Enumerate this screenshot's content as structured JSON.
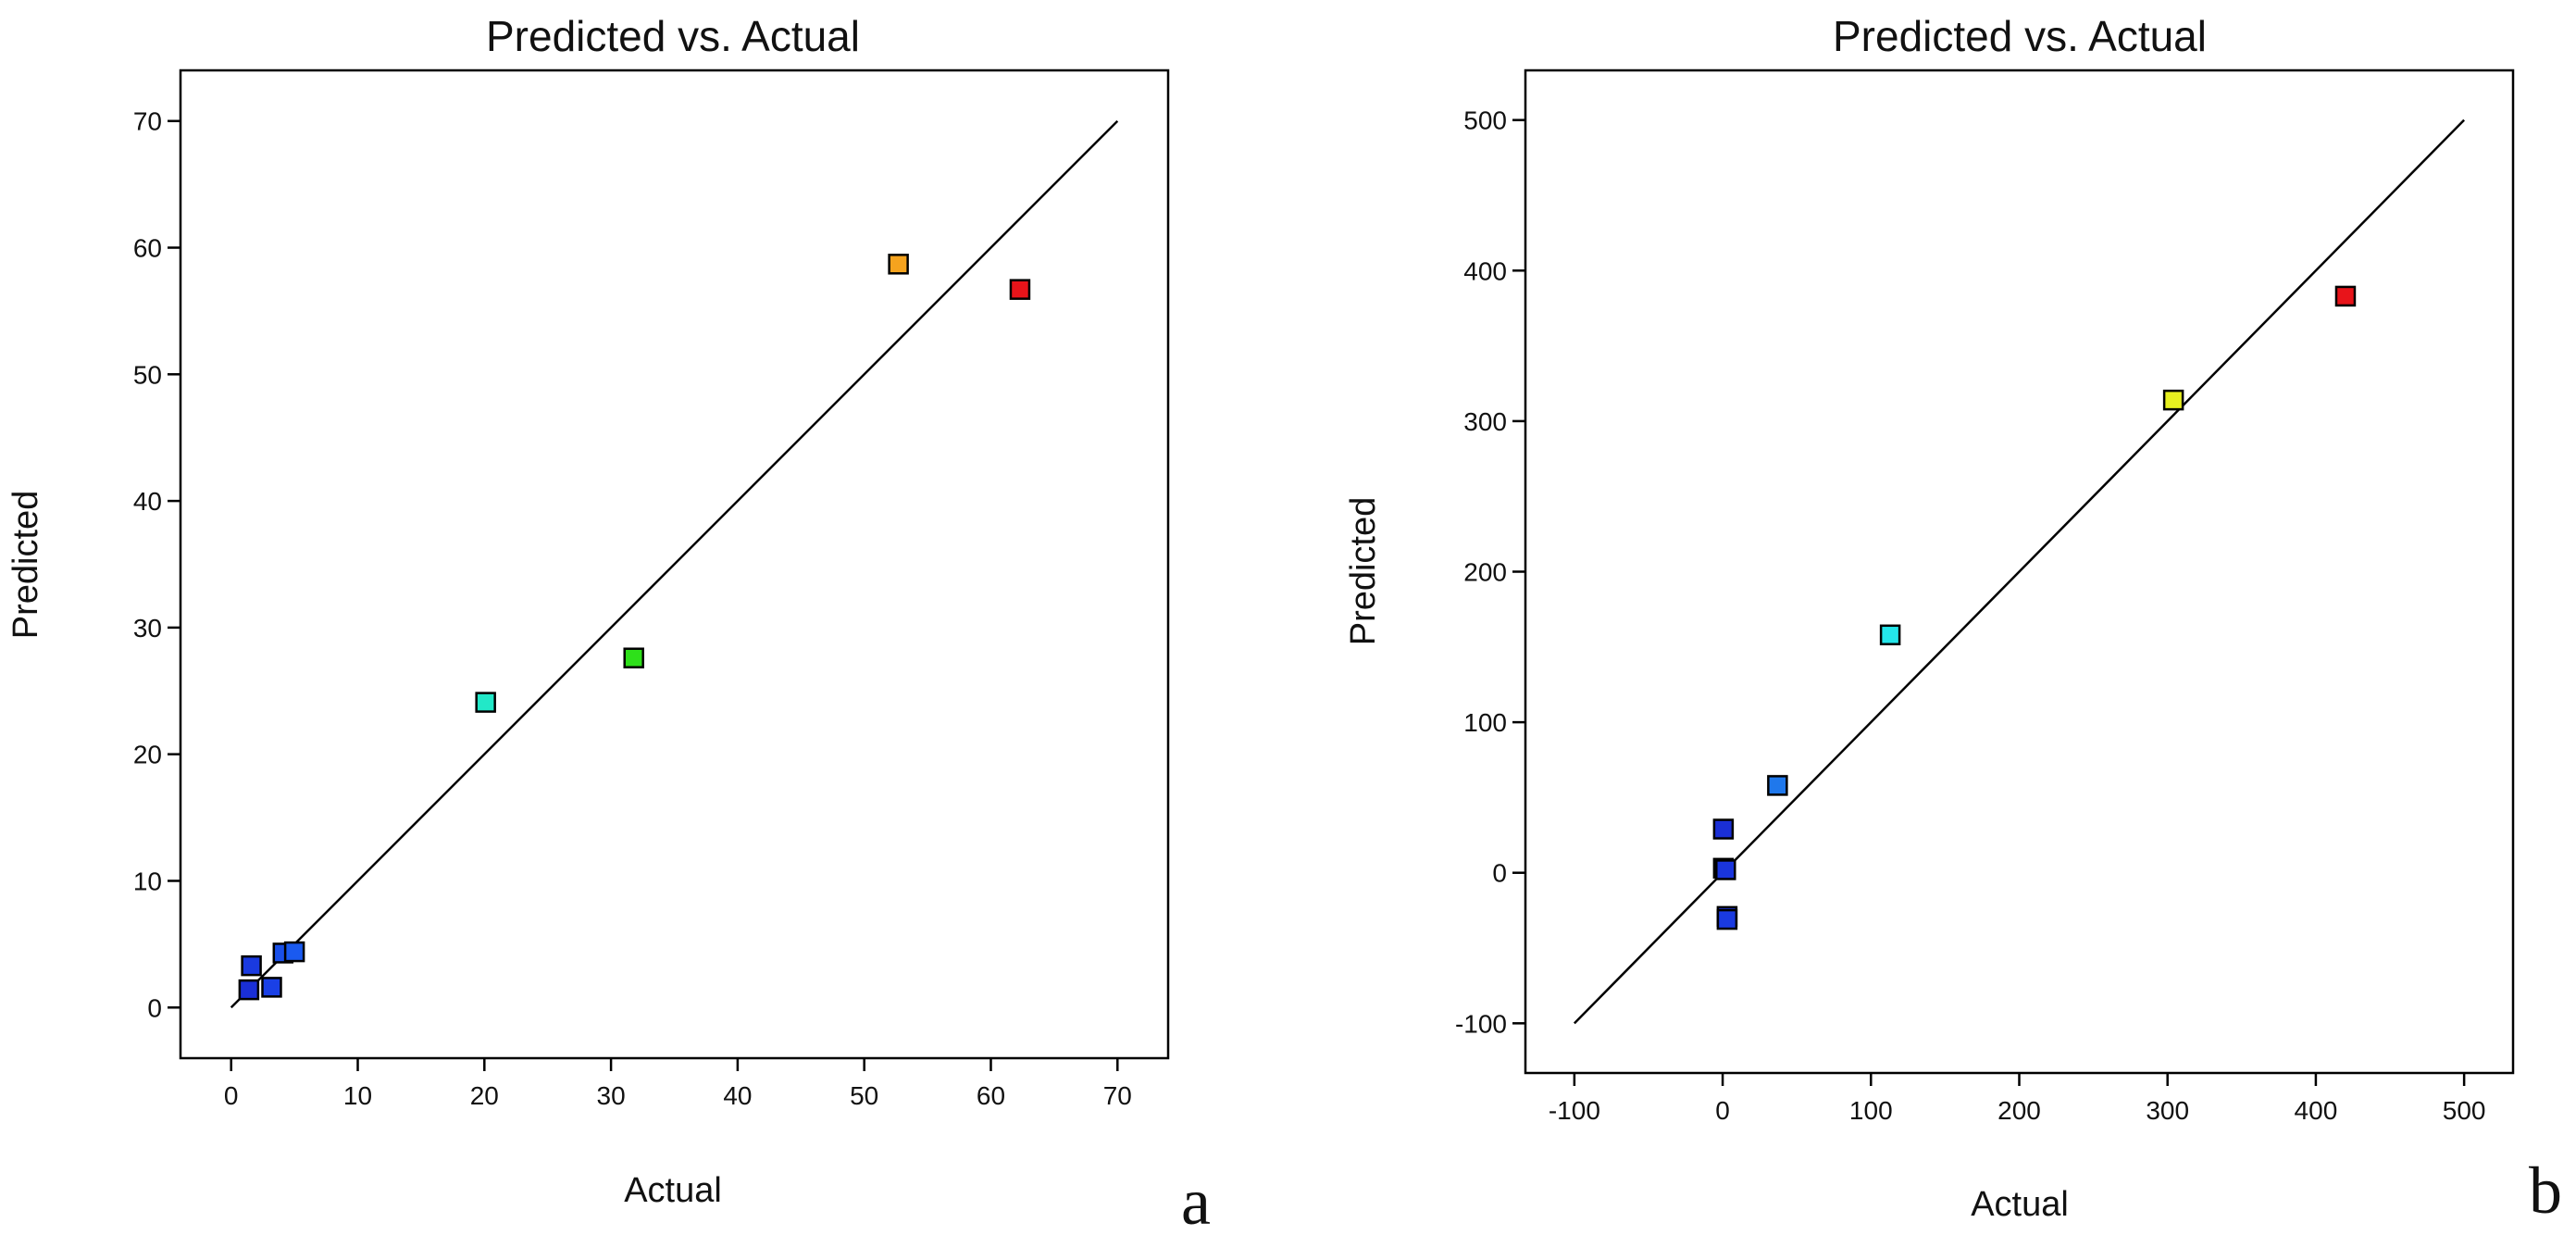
{
  "chart_data": [
    {
      "panel_label": "a",
      "type": "scatter",
      "title": "Predicted vs. Actual",
      "xlabel": "Actual",
      "ylabel": "Predicted",
      "xlim": [
        -4,
        74
      ],
      "ylim": [
        -4,
        74
      ],
      "xticks": [
        0,
        10,
        20,
        30,
        40,
        50,
        60,
        70
      ],
      "yticks": [
        0,
        10,
        20,
        30,
        40,
        50,
        60,
        70
      ],
      "reference_line": {
        "from": [
          0,
          0
        ],
        "to": [
          70,
          70
        ]
      },
      "points": [
        {
          "x": 1.4,
          "y": 1.4,
          "color": "#1a2fd6"
        },
        {
          "x": 1.6,
          "y": 3.3,
          "color": "#1a3ae0"
        },
        {
          "x": 3.2,
          "y": 1.6,
          "color": "#1a40e6"
        },
        {
          "x": 4.1,
          "y": 4.3,
          "color": "#1a50e8"
        },
        {
          "x": 5.0,
          "y": 4.4,
          "color": "#1a5af0"
        },
        {
          "x": 20.1,
          "y": 24.1,
          "color": "#22e8c8"
        },
        {
          "x": 31.8,
          "y": 27.6,
          "color": "#2ee01a"
        },
        {
          "x": 52.7,
          "y": 58.7,
          "color": "#f5a31e"
        },
        {
          "x": 62.3,
          "y": 56.7,
          "color": "#e8141a"
        }
      ]
    },
    {
      "panel_label": "b",
      "type": "scatter",
      "title": "Predicted vs. Actual",
      "xlabel": "Actual",
      "ylabel": "Predicted",
      "xlim": [
        -133,
        533
      ],
      "ylim": [
        -133,
        533
      ],
      "xticks": [
        -100,
        0,
        100,
        200,
        300,
        400,
        500
      ],
      "yticks": [
        -100,
        0,
        100,
        200,
        300,
        400,
        500
      ],
      "reference_line": {
        "from": [
          -100,
          -100
        ],
        "to": [
          500,
          500
        ]
      },
      "points": [
        {
          "x": 0.5,
          "y": 29,
          "color": "#1a2fd6"
        },
        {
          "x": 0.5,
          "y": 3,
          "color": "#1a2fd6"
        },
        {
          "x": 2,
          "y": 2,
          "color": "#1a35dc"
        },
        {
          "x": 3,
          "y": -29,
          "color": "#1a2fd6"
        },
        {
          "x": 3,
          "y": -31,
          "color": "#1a3ae0"
        },
        {
          "x": 37,
          "y": 58,
          "color": "#1f78ec"
        },
        {
          "x": 113,
          "y": 158,
          "color": "#24e6ea"
        },
        {
          "x": 304,
          "y": 314,
          "color": "#e8f020"
        },
        {
          "x": 420,
          "y": 383,
          "color": "#e8141a"
        }
      ]
    }
  ]
}
